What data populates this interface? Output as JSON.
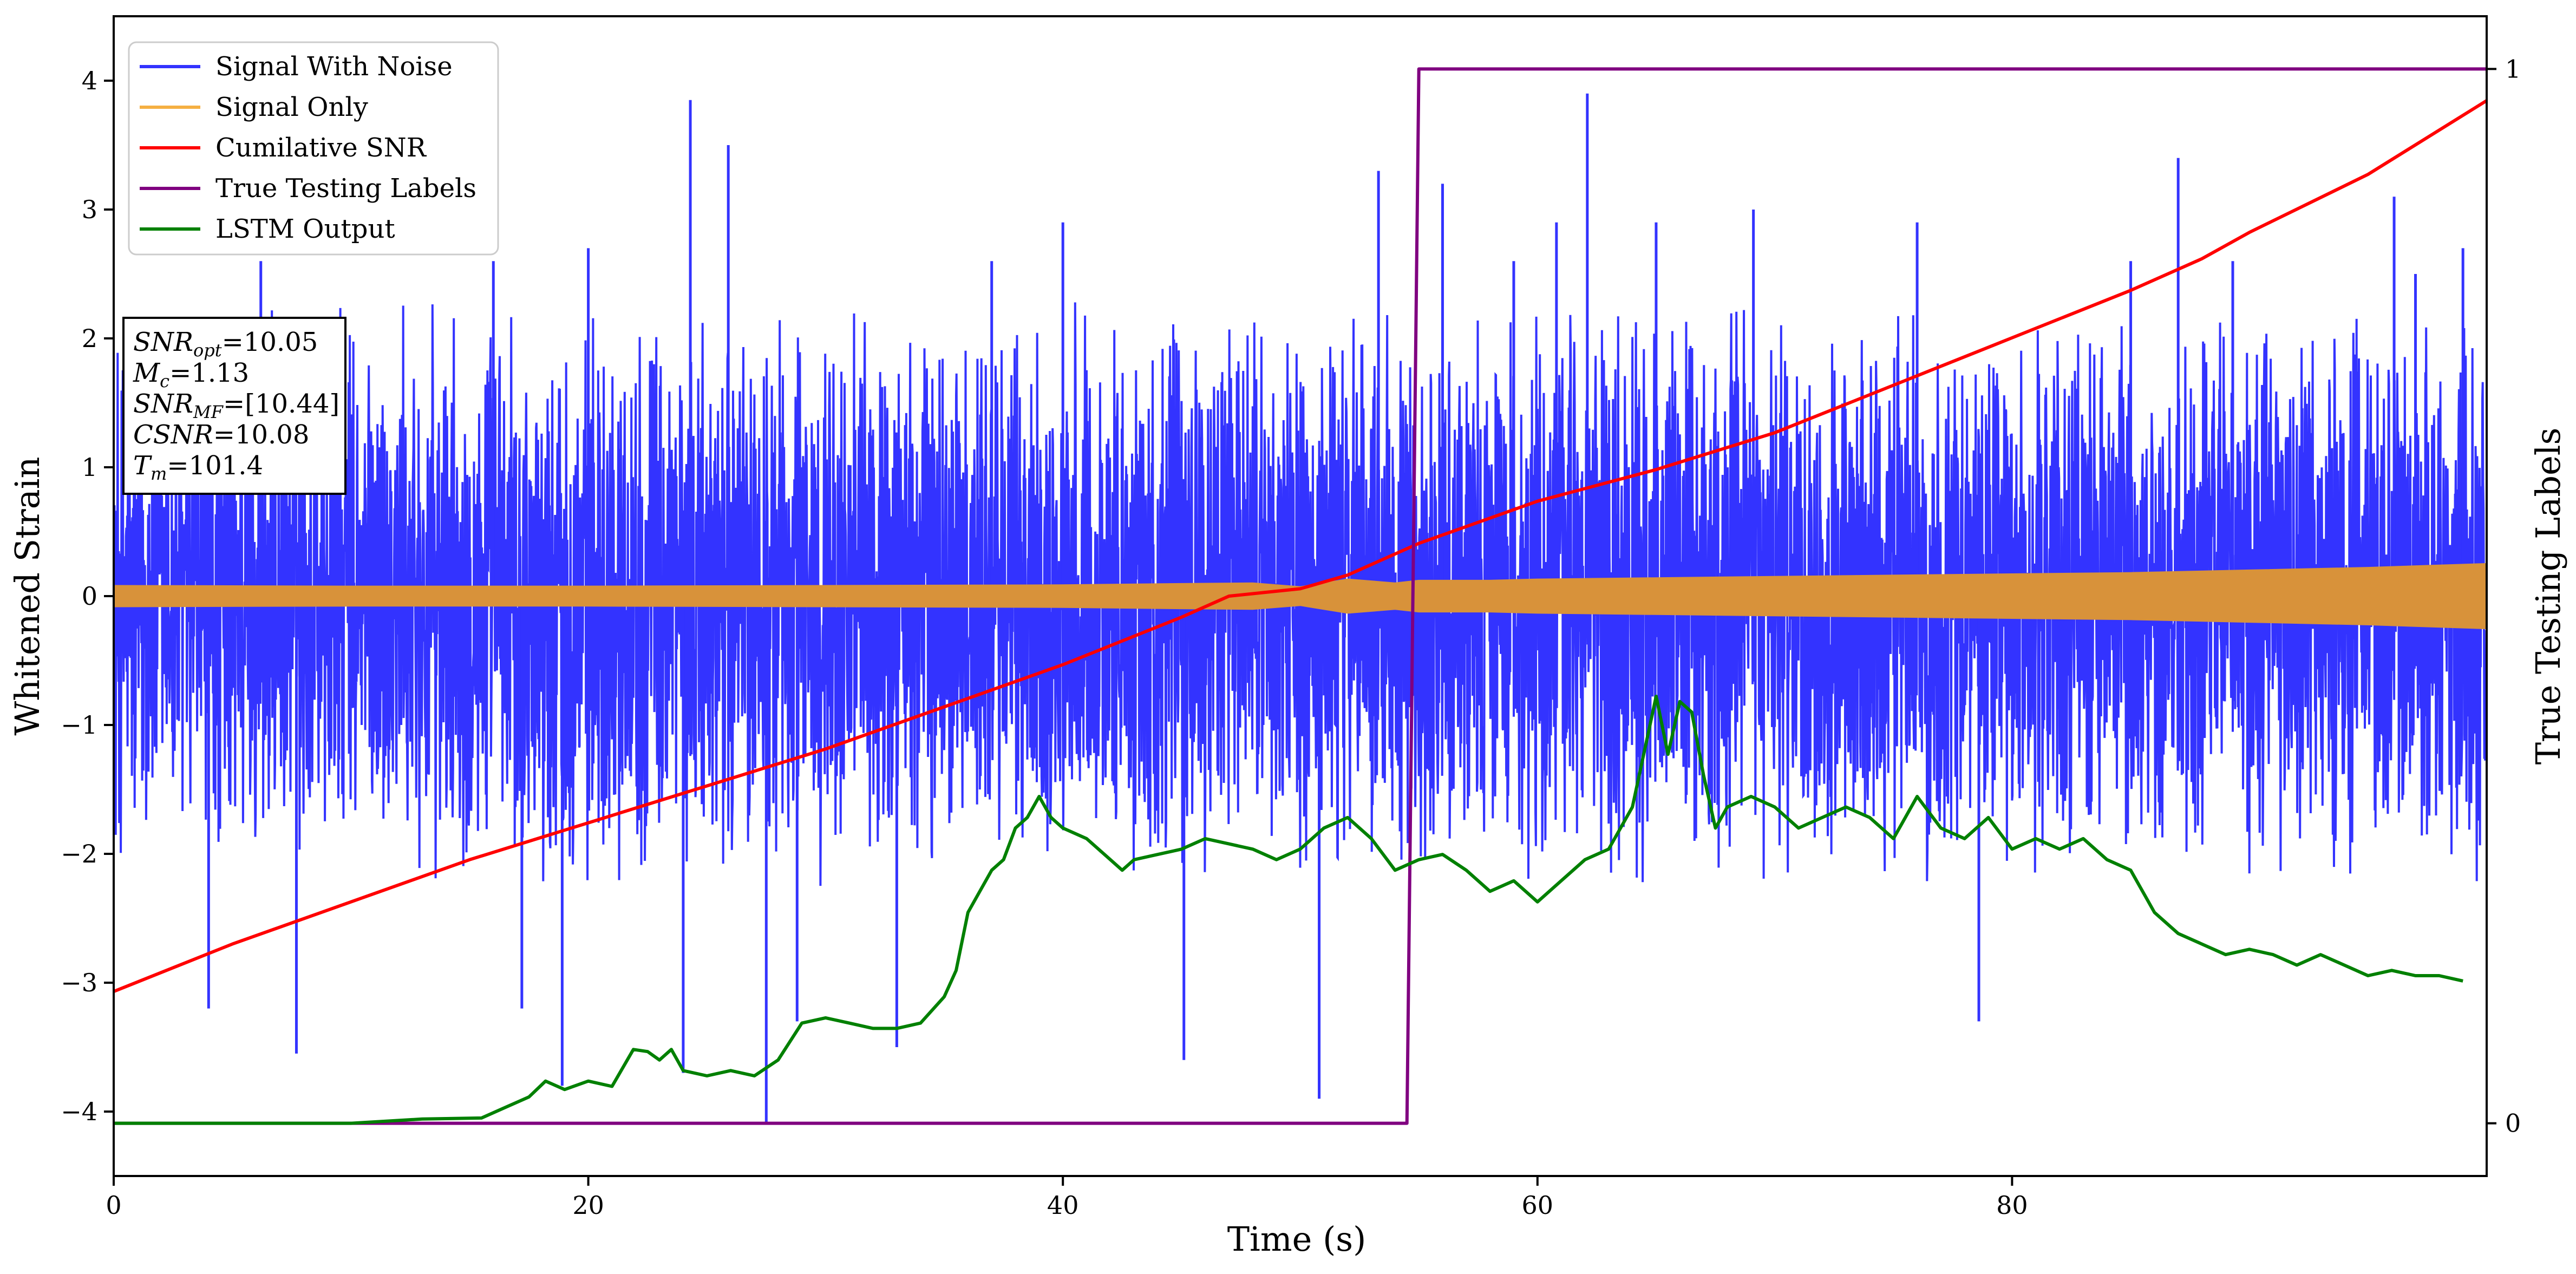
{
  "chart_data": {
    "type": "line",
    "xlabel": "Time (s)",
    "ylabel": "Whitened Strain",
    "ylabel_right": "True Testing Labels",
    "xlim": [
      0,
      100
    ],
    "ylim": [
      -4.5,
      4.5
    ],
    "ylim_right": [
      -0.05,
      1.05
    ],
    "x_ticks": [
      "0",
      "20",
      "40",
      "60",
      "80"
    ],
    "y_ticks": [
      "−4",
      "−3",
      "−2",
      "−1",
      "0",
      "1",
      "2",
      "3",
      "4"
    ],
    "y_right_ticks": [
      "0",
      "1"
    ],
    "legend_position": "top-left",
    "legend": [
      {
        "label": "Signal With Noise",
        "color": "#3333ff"
      },
      {
        "label": "Signal Only",
        "color": "#f5b042"
      },
      {
        "label": "Cumilative SNR",
        "color": "#ff0000"
      },
      {
        "label": "True Testing Labels",
        "color": "#800080"
      },
      {
        "label": "LSTM Output",
        "color": "#008000"
      }
    ],
    "annotation": {
      "lines": [
        {
          "name": "SNR",
          "sub": "opt",
          "value": "=10.05"
        },
        {
          "name": "M",
          "sub": "c",
          "value": "=1.13"
        },
        {
          "name": "SNR",
          "sub": "MF",
          "value": "=[10.44]"
        },
        {
          "name": "CSNR",
          "sub": "",
          "value": "=10.08"
        },
        {
          "name": "T",
          "sub": "m",
          "value": "=101.4"
        }
      ]
    },
    "series": [
      {
        "name": "Signal With Noise",
        "color": "#3333ff",
        "style": "noise",
        "x_range": [
          0,
          100
        ],
        "typical_range": [
          -2.3,
          2.3
        ],
        "spikes": [
          [
            4.0,
            -3.2
          ],
          [
            6.2,
            2.6
          ],
          [
            7.7,
            -3.55
          ],
          [
            16.0,
            2.6
          ],
          [
            17.2,
            -3.2
          ],
          [
            18.9,
            -3.8
          ],
          [
            20.0,
            2.7
          ],
          [
            24.3,
            3.85
          ],
          [
            24.0,
            -3.7
          ],
          [
            25.9,
            3.5
          ],
          [
            27.5,
            -4.1
          ],
          [
            28.8,
            -3.3
          ],
          [
            33.0,
            -3.5
          ],
          [
            37.0,
            2.6
          ],
          [
            40.0,
            2.9
          ],
          [
            45.1,
            -3.6
          ],
          [
            50.8,
            -3.9
          ],
          [
            53.3,
            3.3
          ],
          [
            56.0,
            3.2
          ],
          [
            59.0,
            2.6
          ],
          [
            60.8,
            2.9
          ],
          [
            62.1,
            3.9
          ],
          [
            65.0,
            2.9
          ],
          [
            69.1,
            3.0
          ],
          [
            76.0,
            2.9
          ],
          [
            78.6,
            -3.3
          ],
          [
            85.0,
            2.6
          ],
          [
            87.0,
            3.4
          ],
          [
            89.3,
            2.6
          ],
          [
            96.1,
            3.1
          ],
          [
            97.0,
            2.5
          ],
          [
            99.0,
            2.7
          ]
        ]
      },
      {
        "name": "Signal Only",
        "color": "#f5b042",
        "style": "envelope",
        "x": [
          0,
          10,
          20,
          30,
          40,
          45,
          48,
          50,
          52,
          54,
          55,
          58,
          60,
          65,
          70,
          75,
          80,
          85,
          90,
          95,
          100
        ],
        "amplitude": [
          0.08,
          0.075,
          0.075,
          0.08,
          0.085,
          0.095,
          0.1,
          0.07,
          0.13,
          0.1,
          0.12,
          0.12,
          0.13,
          0.14,
          0.15,
          0.16,
          0.17,
          0.18,
          0.2,
          0.22,
          0.25
        ]
      },
      {
        "name": "Cumilative SNR",
        "color": "#ff0000",
        "axis": "right",
        "x": [
          0,
          5,
          10,
          15,
          20,
          25,
          30,
          35,
          40,
          45,
          47,
          50,
          52,
          55,
          60,
          65,
          70,
          75,
          80,
          85,
          88,
          90,
          95,
          100
        ],
        "y": [
          0.125,
          0.17,
          0.21,
          0.25,
          0.285,
          0.32,
          0.355,
          0.395,
          0.435,
          0.48,
          0.5,
          0.507,
          0.52,
          0.55,
          0.59,
          0.62,
          0.655,
          0.7,
          0.745,
          0.79,
          0.82,
          0.845,
          0.9,
          0.97
        ]
      },
      {
        "name": "True Testing Labels",
        "color": "#800080",
        "axis": "right",
        "x": [
          0,
          54.5,
          54.5,
          55.0,
          100
        ],
        "y": [
          0,
          0,
          0.0,
          1,
          1
        ]
      },
      {
        "name": "LSTM Output",
        "color": "#008000",
        "axis": "right",
        "x": [
          0,
          10,
          13,
          15.5,
          16.5,
          17.5,
          18.2,
          19,
          20,
          21,
          21.9,
          22.5,
          23,
          23.5,
          24,
          25,
          26,
          27,
          28,
          29,
          30,
          31,
          32,
          33,
          34,
          35,
          35.5,
          36,
          36.5,
          37,
          37.5,
          38,
          38.5,
          39,
          39.5,
          40,
          40.5,
          41,
          41.5,
          42,
          42.5,
          43,
          44,
          45,
          46,
          47,
          48,
          49,
          50,
          51,
          52,
          53,
          54,
          55,
          56,
          57,
          58,
          59,
          60,
          61,
          62,
          63,
          64,
          65,
          65.5,
          66,
          66.5,
          67,
          67.5,
          68,
          69,
          70,
          71,
          72,
          73,
          74,
          75,
          76,
          77,
          78,
          79,
          80,
          81,
          82,
          83,
          84,
          85,
          86,
          87,
          88,
          89,
          90,
          91,
          92,
          93,
          94,
          95,
          96,
          97,
          98,
          99
        ],
        "y": [
          0,
          0,
          0.004,
          0.005,
          0.015,
          0.025,
          0.04,
          0.032,
          0.04,
          0.035,
          0.07,
          0.068,
          0.06,
          0.07,
          0.05,
          0.045,
          0.05,
          0.045,
          0.06,
          0.095,
          0.1,
          0.095,
          0.09,
          0.09,
          0.095,
          0.12,
          0.145,
          0.2,
          0.22,
          0.24,
          0.25,
          0.28,
          0.29,
          0.31,
          0.29,
          0.28,
          0.275,
          0.27,
          0.26,
          0.25,
          0.24,
          0.25,
          0.255,
          0.26,
          0.27,
          0.265,
          0.26,
          0.25,
          0.26,
          0.28,
          0.29,
          0.27,
          0.24,
          0.25,
          0.255,
          0.24,
          0.22,
          0.23,
          0.21,
          0.23,
          0.25,
          0.26,
          0.3,
          0.405,
          0.35,
          0.4,
          0.39,
          0.33,
          0.28,
          0.3,
          0.31,
          0.3,
          0.28,
          0.29,
          0.3,
          0.29,
          0.27,
          0.31,
          0.28,
          0.27,
          0.29,
          0.26,
          0.27,
          0.26,
          0.27,
          0.25,
          0.24,
          0.2,
          0.18,
          0.17,
          0.16,
          0.165,
          0.16,
          0.15,
          0.16,
          0.15,
          0.14,
          0.145,
          0.14,
          0.14,
          0.135
        ]
      }
    ]
  }
}
